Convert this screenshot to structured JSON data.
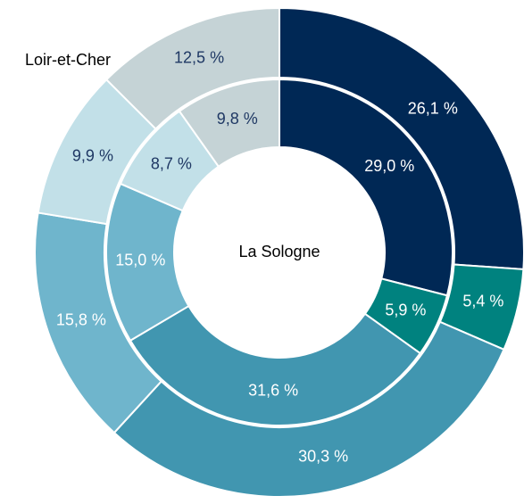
{
  "chart_data": {
    "type": "nested-donut",
    "colors": [
      "#002855",
      "#00827f",
      "#4196b0",
      "#6fb5cc",
      "#c2e0e8",
      "#c5d3d6"
    ],
    "label_colors": [
      "#ffffff",
      "#ffffff",
      "#ffffff",
      "#ffffff",
      "#1f3864",
      "#1f3864"
    ],
    "series": [
      {
        "name": "Loir-et-Cher",
        "values": [
          26.1,
          5.4,
          30.3,
          15.8,
          9.9,
          12.5
        ],
        "value_labels": [
          "26,1 %",
          "5,4 %",
          "30,3 %",
          "15,8 %",
          "9,9 %",
          "12,5 %"
        ]
      },
      {
        "name": "La Sologne",
        "values": [
          29.0,
          5.9,
          31.6,
          15.0,
          8.7,
          9.8
        ],
        "value_labels": [
          "29,0 %",
          "5,9 %",
          "31,6 %",
          "15,0 %",
          "8,7 %",
          "9,8 %"
        ]
      }
    ]
  }
}
